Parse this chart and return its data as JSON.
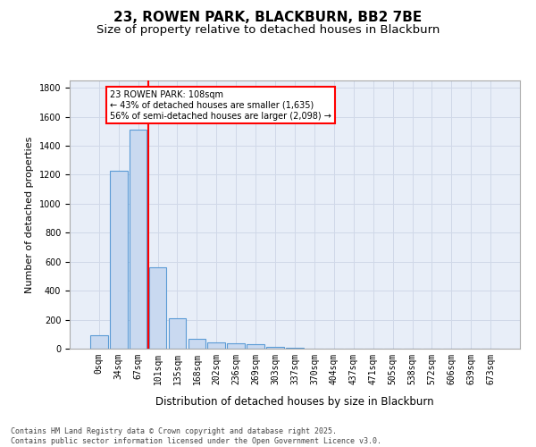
{
  "title1": "23, ROWEN PARK, BLACKBURN, BB2 7BE",
  "title2": "Size of property relative to detached houses in Blackburn",
  "xlabel": "Distribution of detached houses by size in Blackburn",
  "ylabel": "Number of detached properties",
  "categories": [
    "0sqm",
    "34sqm",
    "67sqm",
    "101sqm",
    "135sqm",
    "168sqm",
    "202sqm",
    "236sqm",
    "269sqm",
    "303sqm",
    "337sqm",
    "370sqm",
    "404sqm",
    "437sqm",
    "471sqm",
    "505sqm",
    "538sqm",
    "572sqm",
    "606sqm",
    "639sqm",
    "673sqm"
  ],
  "values": [
    90,
    1230,
    1510,
    560,
    210,
    65,
    45,
    35,
    28,
    12,
    5,
    3,
    2,
    1,
    1,
    0,
    0,
    0,
    0,
    0,
    0
  ],
  "bar_color": "#c9d9f0",
  "bar_edge_color": "#5b9bd5",
  "vline_x": 2.5,
  "vline_color": "red",
  "annotation_text": "23 ROWEN PARK: 108sqm\n← 43% of detached houses are smaller (1,635)\n56% of semi-detached houses are larger (2,098) →",
  "annotation_box_color": "red",
  "annotation_text_color": "black",
  "ylim": [
    0,
    1850
  ],
  "grid_color": "#d0d8e8",
  "background_color": "#e8eef8",
  "footer1": "Contains HM Land Registry data © Crown copyright and database right 2025.",
  "footer2": "Contains public sector information licensed under the Open Government Licence v3.0.",
  "title_fontsize": 11,
  "subtitle_fontsize": 9.5,
  "tick_fontsize": 7,
  "ylabel_fontsize": 8,
  "xlabel_fontsize": 8.5,
  "annotation_fontsize": 7,
  "footer_fontsize": 6
}
